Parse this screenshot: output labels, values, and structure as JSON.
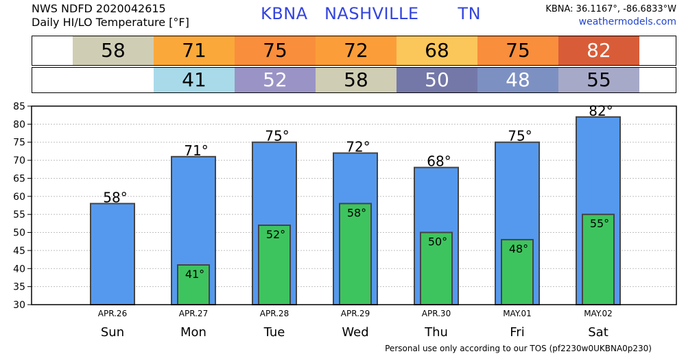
{
  "header": {
    "line1": "NWS NDFD 2020042615",
    "line2": "Daily HI/LO Temperature [°F]",
    "station": "KBNA   NASHVILLE       TN",
    "coords": "KBNA: 36.1167°, -86.6833°W",
    "site": "weathermodels.com"
  },
  "hi_strip": [
    {
      "value": "58",
      "bg": "#cfcdb4",
      "fg": "#000000"
    },
    {
      "value": "71",
      "bg": "#fba83a",
      "fg": "#000000"
    },
    {
      "value": "75",
      "bg": "#f98e3c",
      "fg": "#000000"
    },
    {
      "value": "72",
      "bg": "#fb9e3a",
      "fg": "#000000"
    },
    {
      "value": "68",
      "bg": "#fbc65a",
      "fg": "#000000"
    },
    {
      "value": "75",
      "bg": "#f98e3c",
      "fg": "#000000"
    },
    {
      "value": "82",
      "bg": "#d95c38",
      "fg": "#ffffff"
    }
  ],
  "lo_strip": [
    {
      "value": "",
      "bg": "#ffffff",
      "fg": "#000000"
    },
    {
      "value": "41",
      "bg": "#a8daea",
      "fg": "#000000"
    },
    {
      "value": "52",
      "bg": "#9a94c6",
      "fg": "#ffffff"
    },
    {
      "value": "58",
      "bg": "#cfcdb4",
      "fg": "#000000"
    },
    {
      "value": "50",
      "bg": "#7478a8",
      "fg": "#ffffff"
    },
    {
      "value": "48",
      "bg": "#7d90c2",
      "fg": "#ffffff"
    },
    {
      "value": "55",
      "bg": "#a7a9c8",
      "fg": "#000000"
    }
  ],
  "chart_data": {
    "type": "bar",
    "categories": [
      "Sun",
      "Mon",
      "Tue",
      "Wed",
      "Thu",
      "Fri",
      "Sat"
    ],
    "dates": [
      "APR.26",
      "APR.27",
      "APR.28",
      "APR.29",
      "APR.30",
      "MAY.01",
      "MAY.02"
    ],
    "series": [
      {
        "values": [
          58,
          71,
          75,
          72,
          68,
          75,
          82
        ],
        "labels": [
          "58°",
          "71°",
          "75°",
          "72°",
          "68°",
          "75°",
          "82°"
        ],
        "color": "#5599ee"
      },
      {
        "values": [
          null,
          41,
          52,
          58,
          50,
          48,
          55
        ],
        "labels": [
          "",
          "41°",
          "52°",
          "58°",
          "50°",
          "48°",
          "55°"
        ],
        "color": "#3ec45e"
      }
    ],
    "ylim": [
      30,
      85
    ],
    "yticks": [
      30,
      35,
      40,
      45,
      50,
      55,
      60,
      65,
      70,
      75,
      80,
      85
    ],
    "grid": true
  },
  "footer": "Personal use only according to our TOS (pf2230w0UKBNA0p230)"
}
